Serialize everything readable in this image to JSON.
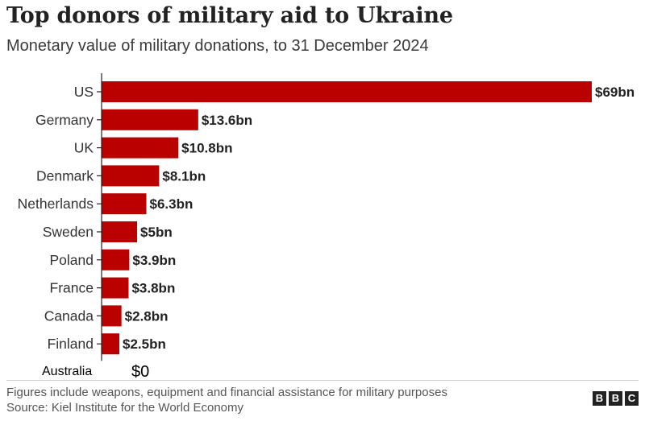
{
  "header": {
    "title": "Top donors of military aid to Ukraine",
    "subtitle": "Monetary value of military donations, to 31 December 2024"
  },
  "footer": {
    "note": "Figures include weapons, equipment and financial assistance for military purposes",
    "source": "Source: Kiel Institute for the World Economy",
    "logo": [
      "B",
      "B",
      "C"
    ]
  },
  "colors": {
    "bar": "#bb0000",
    "axis": "#222222"
  },
  "chart_data": {
    "type": "bar",
    "orientation": "horizontal",
    "title": "Top donors of military aid to Ukraine",
    "subtitle": "Monetary value of military donations, to 31 December 2024",
    "categories": [
      "US",
      "Germany",
      "UK",
      "Denmark",
      "Netherlands",
      "Sweden",
      "Poland",
      "France",
      "Canada",
      "Finland"
    ],
    "values": [
      69,
      13.6,
      10.8,
      8.1,
      6.3,
      5,
      3.9,
      3.8,
      2.8,
      2.5
    ],
    "value_labels": [
      "$69bn",
      "$13.6bn",
      "$10.8bn",
      "$8.1bn",
      "$6.3bn",
      "$5bn",
      "$3.9bn",
      "$3.8bn",
      "$2.8bn",
      "$2.5bn"
    ],
    "extra_row": {
      "category": "Australia",
      "value": 0,
      "value_label": "$0"
    },
    "xlabel": "",
    "ylabel": "",
    "xlim": [
      0,
      69
    ],
    "grid": false
  }
}
